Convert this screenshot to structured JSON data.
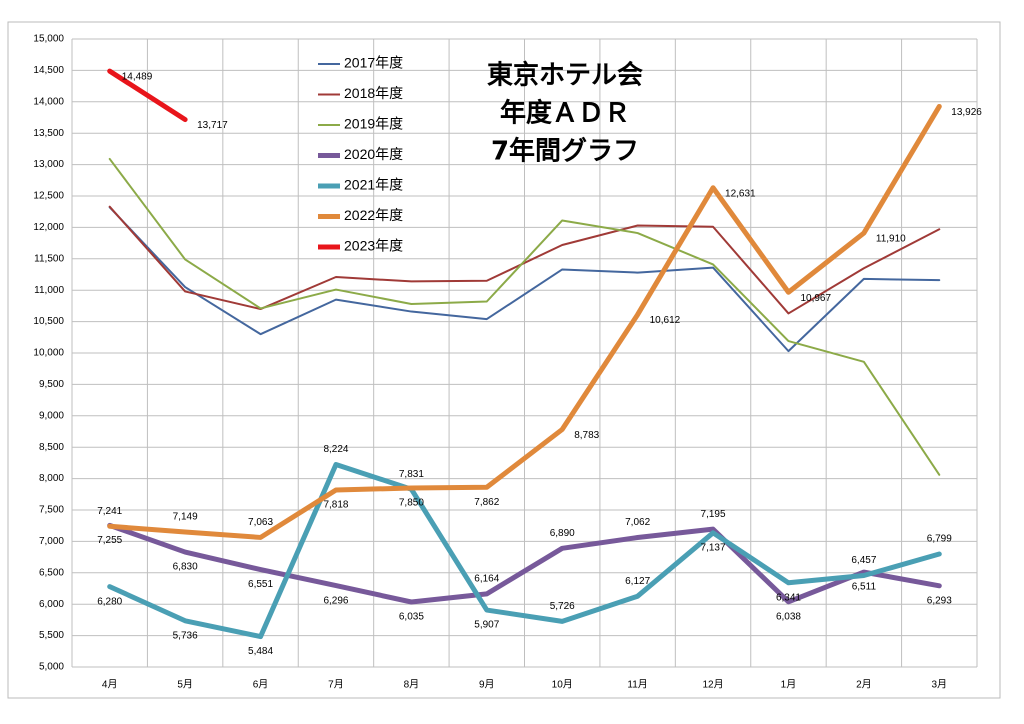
{
  "chart_data": {
    "type": "line",
    "title": [
      "東京ホテル会",
      "年度ＡＤＲ",
      "7年間グラフ"
    ],
    "categories": [
      "4月",
      "5月",
      "6月",
      "7月",
      "8月",
      "9月",
      "10月",
      "11月",
      "12月",
      "1月",
      "2月",
      "3月"
    ],
    "ylim": [
      5000,
      15000
    ],
    "yticks": [
      {
        "value": 5000,
        "label": "5,000"
      },
      {
        "value": 5500,
        "label": "5,500"
      },
      {
        "value": 6000,
        "label": "6,000"
      },
      {
        "value": 6500,
        "label": "6,500"
      },
      {
        "value": 7000,
        "label": "7,000"
      },
      {
        "value": 7500,
        "label": "7,500"
      },
      {
        "value": 8000,
        "label": "8,000"
      },
      {
        "value": 8500,
        "label": "8,500"
      },
      {
        "value": 9000,
        "label": "9,000"
      },
      {
        "value": 9500,
        "label": "9,500"
      },
      {
        "value": 10000,
        "label": "10,000"
      },
      {
        "value": 10500,
        "label": "10,500"
      },
      {
        "value": 11000,
        "label": "11,000"
      },
      {
        "value": 11500,
        "label": "11,500"
      },
      {
        "value": 12000,
        "label": "12,000"
      },
      {
        "value": 12500,
        "label": "12,500"
      },
      {
        "value": 13000,
        "label": "13,000"
      },
      {
        "value": 13500,
        "label": "13,500"
      },
      {
        "value": 14000,
        "label": "14,000"
      },
      {
        "value": 14500,
        "label": "14,500"
      },
      {
        "value": 15000,
        "label": "15,000"
      }
    ],
    "grid": true,
    "legend": "upper left",
    "series": [
      {
        "name": "2017年度",
        "color": "#44679e",
        "values": [
          12320,
          11050,
          10300,
          10850,
          10660,
          10540,
          11330,
          11280,
          11360,
          10030,
          11180,
          11160
        ]
      },
      {
        "name": "2018年度",
        "color": "#a03a37",
        "values": [
          12330,
          10980,
          10700,
          11210,
          11140,
          11150,
          11720,
          12030,
          12010,
          10630,
          11350,
          11970
        ]
      },
      {
        "name": "2019年度",
        "color": "#8caa48",
        "values": [
          13090,
          11490,
          10710,
          11010,
          10780,
          10820,
          12110,
          11910,
          11410,
          10190,
          9860,
          8060
        ]
      },
      {
        "name": "2020年度",
        "color": "#77599a",
        "values": [
          7255,
          6830,
          6551,
          6296,
          6035,
          6164,
          6890,
          7062,
          7195,
          6038,
          6511,
          6293
        ],
        "value_labels": [
          "7,255",
          "6,830",
          "6,551",
          "6,296",
          "6,035",
          "6,164",
          "6,890",
          "7,062",
          "7,195",
          "6,038",
          "6,511",
          "6,293"
        ]
      },
      {
        "name": "2021年度",
        "color": "#4a9fb4",
        "values": [
          6280,
          5736,
          5484,
          8224,
          7831,
          5907,
          5726,
          6127,
          7137,
          6341,
          6457,
          6799
        ],
        "value_labels": [
          "6,280",
          "5,736",
          "5,484",
          "8,224",
          "7,831",
          "5,907",
          "5,726",
          "6,127",
          "7,137",
          "6,341",
          "6,457",
          "6,799"
        ]
      },
      {
        "name": "2022年度",
        "color": "#e0893b",
        "values": [
          7241,
          7149,
          7063,
          7818,
          7850,
          7862,
          8783,
          10612,
          12631,
          10967,
          11910,
          13926
        ],
        "value_labels": [
          "7,241",
          "7,149",
          "7,063",
          "7,818",
          "7,850",
          "7,862",
          "8,783",
          "10,612",
          "12,631",
          "10,967",
          "11,910",
          "13,926"
        ]
      },
      {
        "name": "2023年度",
        "color": "#e8151b",
        "values": [
          14489,
          13717,
          null,
          null,
          null,
          null,
          null,
          null,
          null,
          null,
          null,
          null
        ],
        "value_labels": [
          "14,489",
          "13,717",
          null,
          null,
          null,
          null,
          null,
          null,
          null,
          null,
          null,
          null
        ]
      }
    ]
  }
}
